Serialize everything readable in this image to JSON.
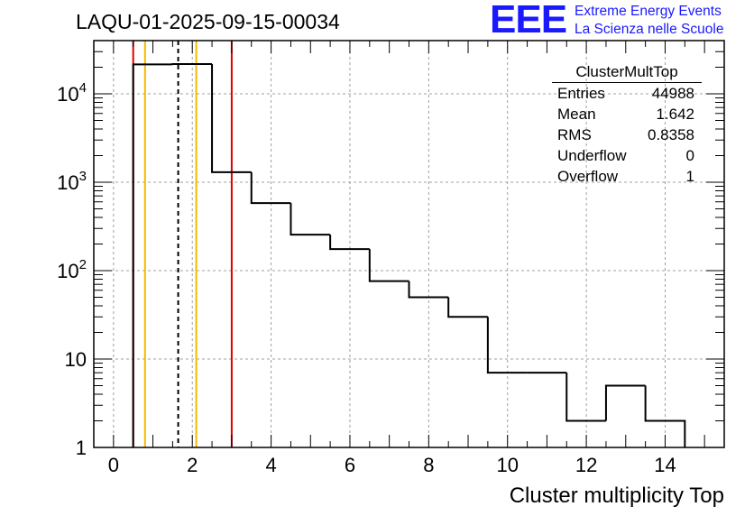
{
  "header": {
    "title": "LAQU-01-2025-09-15-00034"
  },
  "logo": {
    "mark": "EEE",
    "line1": "Extreme Energy Events",
    "line2": "La Scienza nelle Scuole",
    "color": "#1a1aff"
  },
  "stats_box": {
    "title": "ClusterMultTop",
    "rows": [
      {
        "label": "Entries",
        "value": "44988"
      },
      {
        "label": "Mean",
        "value": "1.642"
      },
      {
        "label": "RMS",
        "value": "0.8358"
      },
      {
        "label": "Underflow",
        "value": "0"
      },
      {
        "label": "Overflow",
        "value": "1"
      }
    ]
  },
  "chart_data": {
    "type": "histogram",
    "title": "LAQU-01-2025-09-15-00034",
    "xlabel": "Cluster multiplicity Top",
    "ylabel": "",
    "xlim": [
      -0.5,
      15.5
    ],
    "ylim": [
      1,
      40000
    ],
    "yscale": "log",
    "grid": true,
    "bin_edges": [
      0.5,
      1.5,
      2.5,
      3.5,
      4.5,
      5.5,
      6.5,
      7.5,
      8.5,
      9.5,
      10.5,
      11.5,
      12.5,
      13.5,
      14.5
    ],
    "counts": [
      21500,
      21700,
      1300,
      580,
      255,
      175,
      76,
      50,
      30,
      7,
      7,
      2,
      5,
      2
    ],
    "x_ticks": [
      0,
      2,
      4,
      6,
      8,
      10,
      12,
      14
    ],
    "x_tick_labels": [
      "0",
      "2",
      "4",
      "6",
      "8",
      "10",
      "12",
      "14"
    ],
    "y_ticks": [
      1,
      10,
      100,
      1000,
      10000
    ],
    "y_tick_labels": [
      {
        "base": "1",
        "exp": ""
      },
      {
        "base": "10",
        "exp": ""
      },
      {
        "base": "10",
        "exp": "2"
      },
      {
        "base": "10",
        "exp": "3"
      },
      {
        "base": "10",
        "exp": "4"
      }
    ],
    "vertical_markers": [
      {
        "x": 0.5,
        "color": "#e00000",
        "style": "solid"
      },
      {
        "x": 0.8,
        "color": "#f5b800",
        "style": "solid"
      },
      {
        "x": 1.642,
        "color": "#000000",
        "style": "dashed"
      },
      {
        "x": 2.1,
        "color": "#f5b800",
        "style": "solid"
      },
      {
        "x": 3.0,
        "color": "#e00000",
        "style": "solid"
      }
    ],
    "line_color": "#000000"
  }
}
